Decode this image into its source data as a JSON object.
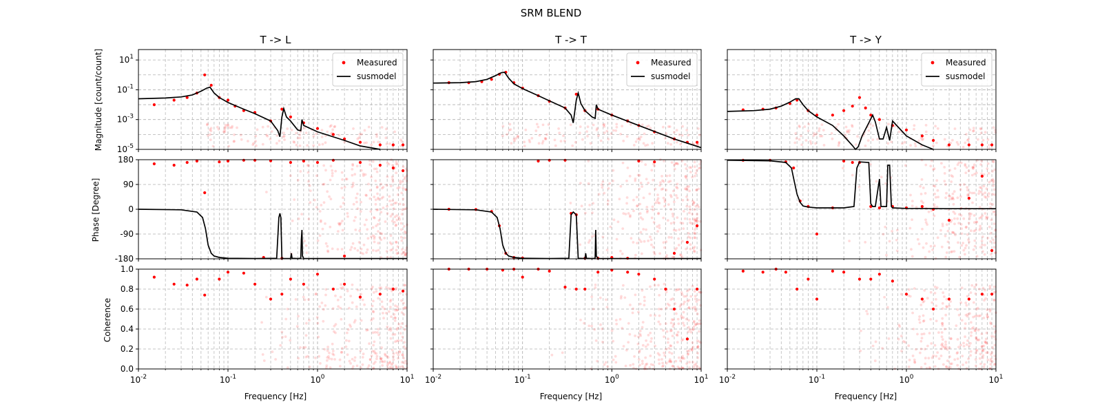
{
  "figure": {
    "title": "SRM BLEND"
  },
  "columns": [
    {
      "title": "T -> L"
    },
    {
      "title": "T -> T"
    },
    {
      "title": "T -> Y"
    }
  ],
  "axes": {
    "xlabel": "Frequency [Hz]",
    "ylabel_mag": "Magnitude [count/count]",
    "ylabel_phase": "Phase [Degree]",
    "ylabel_coh": "Coherence"
  },
  "legend": {
    "measured": "Measured",
    "model": "susmodel"
  },
  "colors": {
    "measured": "#ff0000",
    "model": "#000000",
    "grid": "#b0b0b0"
  },
  "ticks": {
    "x": [
      "10^-2",
      "10^-1",
      "10^0",
      "10^1"
    ],
    "mag": [
      "10^1",
      "10^-1",
      "10^-3",
      "10^-5"
    ],
    "phase": [
      "180",
      "90",
      "0",
      "-90",
      "-180"
    ],
    "coh": [
      "1.0",
      "0.8",
      "0.6",
      "0.4",
      "0.2",
      "0.0"
    ]
  },
  "chart_data": [
    {
      "type": "line",
      "panel": "T -> L magnitude",
      "x_scale": "log",
      "y_scale": "log",
      "xlim": [
        0.01,
        10
      ],
      "ylim": [
        1e-05,
        50
      ],
      "series": [
        {
          "name": "susmodel",
          "x": [
            0.01,
            0.02,
            0.03,
            0.04,
            0.05,
            0.058,
            0.063,
            0.07,
            0.08,
            0.1,
            0.15,
            0.2,
            0.3,
            0.36,
            0.38,
            0.4,
            0.42,
            0.45,
            0.5,
            0.6,
            0.65,
            0.67,
            0.7,
            1,
            2,
            3,
            5
          ],
          "y": [
            0.025,
            0.028,
            0.033,
            0.045,
            0.08,
            0.13,
            0.15,
            0.06,
            0.03,
            0.014,
            0.005,
            0.0025,
            0.0008,
            0.00018,
            7e-05,
            0.0015,
            0.0055,
            0.0015,
            0.0008,
            0.0002,
            0.00018,
            0.001,
            0.0004,
            0.00015,
            4e-05,
            1.7e-05,
            8e-06
          ]
        },
        {
          "name": "Measured",
          "x": [
            0.015,
            0.025,
            0.035,
            0.045,
            0.055,
            0.065,
            0.08,
            0.1,
            0.12,
            0.15,
            0.2,
            0.3,
            0.4,
            0.5,
            0.7,
            1,
            1.5,
            2,
            3,
            5,
            7,
            9
          ],
          "y": [
            0.01,
            0.02,
            0.03,
            0.06,
            1.0,
            0.2,
            0.03,
            0.02,
            0.008,
            0.004,
            0.003,
            0.0008,
            0.005,
            0.0015,
            0.0006,
            0.00025,
            0.0001,
            5e-05,
            3e-05,
            2e-05,
            2e-05,
            2e-05
          ]
        }
      ]
    },
    {
      "type": "line",
      "panel": "T -> T magnitude",
      "x_scale": "log",
      "y_scale": "log",
      "xlim": [
        0.01,
        10
      ],
      "ylim": [
        1e-05,
        50
      ],
      "series": [
        {
          "name": "susmodel",
          "x": [
            0.01,
            0.02,
            0.03,
            0.04,
            0.05,
            0.058,
            0.063,
            0.07,
            0.08,
            0.1,
            0.15,
            0.2,
            0.3,
            0.35,
            0.37,
            0.4,
            0.42,
            0.45,
            0.5,
            0.6,
            0.65,
            0.67,
            0.7,
            1,
            2,
            5,
            10
          ],
          "y": [
            0.28,
            0.3,
            0.35,
            0.5,
            0.9,
            1.4,
            1.5,
            0.6,
            0.25,
            0.12,
            0.04,
            0.018,
            0.006,
            0.002,
            0.0006,
            0.02,
            0.06,
            0.012,
            0.004,
            0.0015,
            0.0012,
            0.01,
            0.005,
            0.002,
            0.0004,
            5e-05,
            1.3e-05
          ]
        },
        {
          "name": "Measured",
          "x": [
            0.015,
            0.025,
            0.035,
            0.045,
            0.055,
            0.065,
            0.08,
            0.1,
            0.15,
            0.2,
            0.3,
            0.4,
            0.5,
            0.7,
            1,
            1.5,
            2,
            3,
            5,
            7,
            9
          ],
          "y": [
            0.3,
            0.3,
            0.35,
            0.5,
            1.1,
            1.5,
            0.3,
            0.13,
            0.04,
            0.017,
            0.006,
            0.05,
            0.004,
            0.005,
            0.002,
            0.0008,
            0.0004,
            0.00015,
            5e-05,
            3e-05,
            3e-05
          ]
        }
      ]
    },
    {
      "type": "line",
      "panel": "T -> Y magnitude",
      "x_scale": "log",
      "y_scale": "log",
      "xlim": [
        0.01,
        10
      ],
      "ylim": [
        1e-05,
        50
      ],
      "series": [
        {
          "name": "susmodel",
          "x": [
            0.01,
            0.02,
            0.03,
            0.04,
            0.05,
            0.058,
            0.063,
            0.07,
            0.08,
            0.1,
            0.15,
            0.2,
            0.25,
            0.27,
            0.29,
            0.32,
            0.38,
            0.42,
            0.45,
            0.5,
            0.55,
            0.6,
            0.65,
            0.7,
            1,
            1.5,
            2
          ],
          "y": [
            0.0035,
            0.004,
            0.005,
            0.008,
            0.015,
            0.025,
            0.025,
            0.01,
            0.004,
            0.0015,
            0.0004,
            8e-05,
            1.8e-05,
            8e-06,
            1.5e-05,
            8e-05,
            0.0006,
            0.002,
            0.0007,
            5e-05,
            5e-05,
            0.0003,
            4e-05,
            0.0008,
            8e-05,
            2e-05,
            1e-05
          ]
        },
        {
          "name": "Measured",
          "x": [
            0.015,
            0.025,
            0.035,
            0.05,
            0.06,
            0.08,
            0.1,
            0.15,
            0.2,
            0.25,
            0.3,
            0.35,
            0.4,
            0.5,
            0.7,
            1,
            1.5,
            2,
            3,
            5,
            7,
            9
          ],
          "y": [
            0.0045,
            0.005,
            0.006,
            0.012,
            0.02,
            0.004,
            0.002,
            0.002,
            0.004,
            0.008,
            0.03,
            0.006,
            0.002,
            0.001,
            0.0004,
            0.0002,
            8e-05,
            4e-05,
            2e-05,
            2e-05,
            2e-05,
            2e-05
          ]
        }
      ]
    },
    {
      "type": "line",
      "panel": "T -> L phase",
      "x_scale": "log",
      "xlim": [
        0.01,
        10
      ],
      "ylim": [
        -180,
        180
      ],
      "series": [
        {
          "name": "susmodel",
          "x": [
            0.01,
            0.03,
            0.045,
            0.052,
            0.056,
            0.06,
            0.065,
            0.07,
            0.08,
            0.1,
            0.2,
            0.35,
            0.37,
            0.38,
            0.39,
            0.4,
            0.42,
            0.5,
            0.51,
            0.52,
            0.6,
            0.65,
            0.66,
            0.67,
            0.68,
            0.7,
            1,
            3,
            10
          ],
          "y": [
            0,
            -2,
            -10,
            -30,
            -70,
            -130,
            -160,
            -170,
            -175,
            -178,
            -179,
            -178,
            -30,
            -15,
            -30,
            -178,
            -179,
            -179,
            -160,
            -178,
            -179,
            -178,
            -110,
            -75,
            -170,
            -179,
            -179,
            -179,
            -179
          ]
        },
        {
          "name": "Measured",
          "x": [
            0.015,
            0.025,
            0.035,
            0.045,
            0.055,
            0.08,
            0.1,
            0.15,
            0.2,
            0.25,
            0.3,
            0.4,
            0.5,
            0.7,
            1,
            1.5,
            2,
            3,
            5,
            7,
            9
          ],
          "y": [
            165,
            160,
            170,
            175,
            60,
            172,
            175,
            178,
            178,
            -175,
            176,
            -178,
            170,
            175,
            170,
            178,
            -170,
            170,
            160,
            150,
            140
          ]
        }
      ]
    },
    {
      "type": "line",
      "panel": "T -> T phase",
      "x_scale": "log",
      "xlim": [
        0.01,
        10
      ],
      "ylim": [
        -180,
        180
      ],
      "series": [
        {
          "name": "susmodel",
          "x": [
            0.01,
            0.03,
            0.045,
            0.052,
            0.056,
            0.06,
            0.065,
            0.07,
            0.08,
            0.1,
            0.2,
            0.33,
            0.35,
            0.37,
            0.4,
            0.42,
            0.5,
            0.51,
            0.52,
            0.6,
            0.65,
            0.66,
            0.67,
            0.7,
            1,
            3,
            10
          ],
          "y": [
            0,
            -2,
            -10,
            -30,
            -70,
            -130,
            -160,
            -170,
            -175,
            -178,
            -179,
            -178,
            -20,
            -10,
            -20,
            -178,
            -179,
            -160,
            -178,
            -179,
            -178,
            -75,
            -170,
            -179,
            -179,
            -179,
            -179
          ]
        },
        {
          "name": "Measured",
          "x": [
            0.015,
            0.03,
            0.045,
            0.055,
            0.065,
            0.08,
            0.1,
            0.15,
            0.2,
            0.3,
            0.35,
            0.4,
            0.5,
            0.7,
            1,
            1.5,
            2,
            3,
            5,
            7,
            9
          ],
          "y": [
            0,
            -1,
            -8,
            -60,
            -160,
            -175,
            -177,
            175,
            178,
            178,
            -15,
            -20,
            -178,
            -178,
            -175,
            -178,
            175,
            172,
            -160,
            -120,
            -60
          ]
        }
      ]
    },
    {
      "type": "line",
      "panel": "T -> Y phase",
      "x_scale": "log",
      "xlim": [
        0.01,
        10
      ],
      "ylim": [
        -180,
        180
      ],
      "series": [
        {
          "name": "susmodel",
          "x": [
            0.01,
            0.03,
            0.045,
            0.052,
            0.056,
            0.06,
            0.065,
            0.07,
            0.08,
            0.1,
            0.2,
            0.26,
            0.28,
            0.3,
            0.38,
            0.4,
            0.42,
            0.45,
            0.5,
            0.52,
            0.55,
            0.6,
            0.62,
            0.65,
            0.68,
            0.7,
            1,
            3,
            10
          ],
          "y": [
            178,
            176,
            170,
            150,
            100,
            55,
            25,
            12,
            8,
            5,
            5,
            10,
            150,
            172,
            170,
            20,
            10,
            10,
            110,
            10,
            10,
            10,
            160,
            160,
            10,
            5,
            3,
            2,
            2
          ]
        },
        {
          "name": "Measured",
          "x": [
            0.015,
            0.03,
            0.045,
            0.055,
            0.065,
            0.08,
            0.1,
            0.15,
            0.2,
            0.25,
            0.3,
            0.4,
            0.5,
            0.7,
            1,
            1.5,
            2,
            3,
            5,
            7,
            9
          ],
          "y": [
            178,
            178,
            172,
            150,
            30,
            10,
            -90,
            5,
            175,
            170,
            170,
            10,
            5,
            10,
            5,
            10,
            0,
            -40,
            40,
            120,
            -150
          ]
        }
      ]
    },
    {
      "type": "scatter",
      "panel": "T -> L coherence",
      "x_scale": "log",
      "xlim": [
        0.01,
        10
      ],
      "ylim": [
        0,
        1
      ],
      "series": [
        {
          "name": "Measured",
          "x": [
            0.015,
            0.025,
            0.035,
            0.045,
            0.055,
            0.08,
            0.1,
            0.15,
            0.2,
            0.3,
            0.4,
            0.5,
            0.7,
            1,
            1.5,
            2,
            3,
            5,
            7,
            9
          ],
          "y": [
            0.92,
            0.85,
            0.84,
            0.9,
            0.74,
            0.9,
            0.97,
            0.96,
            0.85,
            0.7,
            0.75,
            0.9,
            0.85,
            0.95,
            0.8,
            0.85,
            0.72,
            0.75,
            0.8,
            0.78
          ]
        }
      ]
    },
    {
      "type": "scatter",
      "panel": "T -> T coherence",
      "x_scale": "log",
      "xlim": [
        0.01,
        10
      ],
      "ylim": [
        0,
        1
      ],
      "series": [
        {
          "name": "Measured",
          "x": [
            0.015,
            0.025,
            0.04,
            0.06,
            0.08,
            0.1,
            0.15,
            0.2,
            0.3,
            0.4,
            0.5,
            0.7,
            1,
            1.5,
            2,
            3,
            4,
            5,
            7,
            9
          ],
          "y": [
            1.0,
            1.0,
            1.0,
            0.99,
            1.0,
            0.92,
            1.0,
            0.98,
            0.82,
            0.8,
            0.8,
            0.97,
            0.99,
            0.97,
            0.95,
            0.9,
            0.8,
            0.6,
            0.3,
            0.8
          ]
        }
      ]
    },
    {
      "type": "scatter",
      "panel": "T -> Y coherence",
      "x_scale": "log",
      "xlim": [
        0.01,
        10
      ],
      "ylim": [
        0,
        1
      ],
      "series": [
        {
          "name": "Measured",
          "x": [
            0.015,
            0.025,
            0.035,
            0.045,
            0.06,
            0.08,
            0.1,
            0.15,
            0.2,
            0.3,
            0.4,
            0.5,
            0.7,
            1,
            1.5,
            2,
            3,
            5,
            7,
            9
          ],
          "y": [
            0.98,
            0.97,
            1.0,
            0.97,
            0.8,
            0.9,
            0.7,
            0.98,
            0.97,
            0.9,
            0.9,
            0.95,
            0.88,
            0.75,
            0.7,
            0.6,
            0.7,
            0.7,
            0.75,
            0.75
          ]
        }
      ]
    }
  ]
}
